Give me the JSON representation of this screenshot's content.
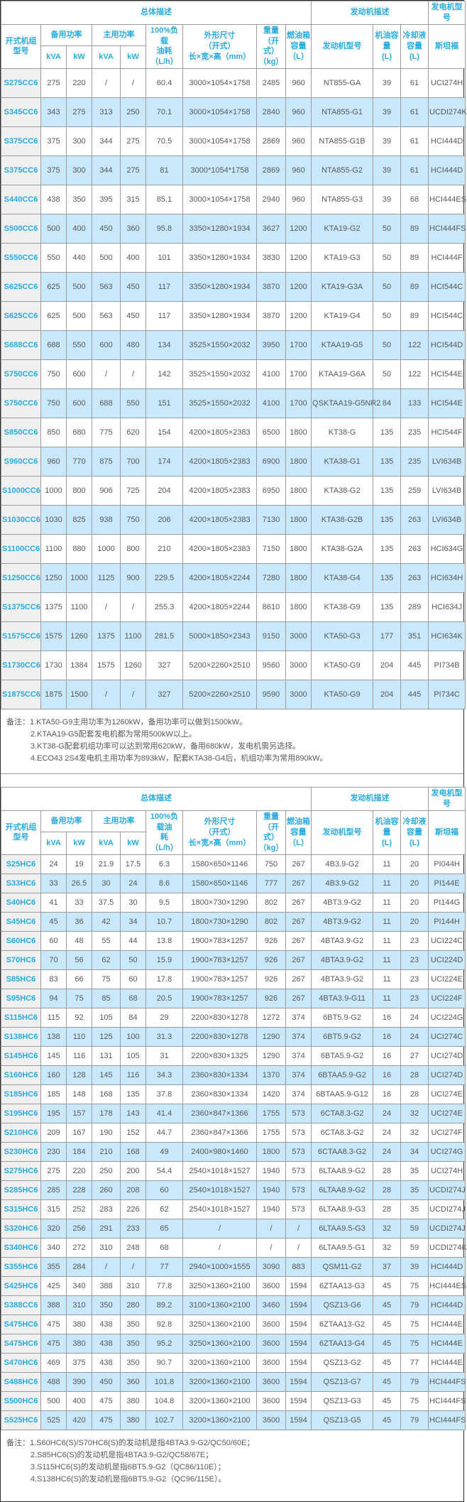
{
  "tables": [
    {
      "group_headers": {
        "overall": "总体描述",
        "engine": "发动机描述",
        "generator": "发电机型号"
      },
      "columns": {
        "model": "开式机组\n型号",
        "standby": "备用功率",
        "prime": "主用功率",
        "kva": "kVA",
        "kw": "kW",
        "fuel": "100%负载\n油耗\n（L/h）",
        "dims": "外形尺寸\n（开式）\n长×宽×高（mm）",
        "weight": "重量\n（开式）\n（kg）",
        "tank": "燃油箱\n容量\n（L）",
        "engine_model": "发动机型号",
        "oil": "机油容量\n(L)",
        "coolant": "冷却液容量\n(L)",
        "stamford": "斯坦福"
      },
      "rows": [
        [
          "S275CC6",
          "275",
          "220",
          "/",
          "/",
          "60.4",
          "3000×1054×1758",
          "2485",
          "960",
          "NT855-GA",
          "39",
          "61",
          "UCI274H"
        ],
        [
          "S345CC6",
          "343",
          "275",
          "313",
          "250",
          "70.1",
          "3000×1054×1758",
          "2840",
          "960",
          "NTA855-G1",
          "39",
          "61",
          "UCDI274K"
        ],
        [
          "S375CC6",
          "375",
          "300",
          "344",
          "275",
          "70.5",
          "3000×1054×1758",
          "2869",
          "960",
          "NTA855-G1B",
          "39",
          "61",
          "HCI444D"
        ],
        [
          "S375CC6",
          "375",
          "300",
          "344",
          "275",
          "81",
          "3000*1054*1758",
          "2869",
          "960",
          "NTA855-G2",
          "39",
          "61",
          "HCI444D"
        ],
        [
          "S440CC6",
          "438",
          "350",
          "395",
          "315",
          "85.1",
          "3000×1054×1758",
          "2940",
          "960",
          "NTA855-G3",
          "39",
          "68",
          "HCI444ES"
        ],
        [
          "S500CC6",
          "500",
          "400",
          "450",
          "360",
          "95.8",
          "3350×1280×1934",
          "3627",
          "1200",
          "KTA19-G2",
          "50",
          "89",
          "HCI444FS"
        ],
        [
          "S550CC6",
          "550",
          "440",
          "500",
          "400",
          "101",
          "3350×1280×1934",
          "3830",
          "1200",
          "KTA19-G3",
          "50",
          "89",
          "HCI444F"
        ],
        [
          "S625CC6",
          "625",
          "500",
          "563",
          "450",
          "117",
          "3350×1280×1934",
          "3870",
          "1200",
          "KTA19-G3A",
          "50",
          "89",
          "HCI544C"
        ],
        [
          "S625CC6",
          "625",
          "500",
          "563",
          "450",
          "117",
          "3350×1280×1934",
          "3870",
          "1200",
          "KTA19-G4",
          "50",
          "89",
          "HCI544C"
        ],
        [
          "S688CC6",
          "688",
          "550",
          "600",
          "480",
          "134",
          "3525×1550×2032",
          "3950",
          "1700",
          "KTAA19-G5",
          "50",
          "122",
          "HCI544D"
        ],
        [
          "S750CC6",
          "750",
          "600",
          "/",
          "/",
          "142",
          "3525×1550×2032",
          "4100",
          "1700",
          "KTAA19-G6A",
          "50",
          "122",
          "HCI544E"
        ],
        [
          "S750CC6",
          "750",
          "600",
          "688",
          "550",
          "151",
          "3525×1550×2032",
          "4100",
          "1700",
          "QSKTAA19-G5NR2",
          "84",
          "133",
          "HCI544E"
        ],
        [
          "S850CC6",
          "850",
          "680",
          "775",
          "620",
          "154",
          "4200×1805×2383",
          "6500",
          "1800",
          "KT38-G",
          "135",
          "235",
          "HCI544F"
        ],
        [
          "S960CC6",
          "960",
          "770",
          "875",
          "700",
          "174",
          "4200×1805×2383",
          "6900",
          "1800",
          "KTA38-G1",
          "135",
          "235",
          "LVI634B"
        ],
        [
          "S1000CC6",
          "1000",
          "800",
          "906",
          "725",
          "204",
          "4200×1805×2383",
          "6950",
          "1800",
          "KTA38-G2",
          "135",
          "259",
          "LVI634B"
        ],
        [
          "S1030CC6",
          "1030",
          "825",
          "938",
          "750",
          "206",
          "4200×1805×2383",
          "7130",
          "1800",
          "KTA38-G2B",
          "135",
          "263",
          "LVI634B"
        ],
        [
          "S1100CC6",
          "1100",
          "880",
          "1000",
          "800",
          "210",
          "4200×1805×2383",
          "7150",
          "1800",
          "KTA38-G2A",
          "135",
          "263",
          "HCI634G"
        ],
        [
          "S1250CC6",
          "1250",
          "1000",
          "1125",
          "900",
          "229.5",
          "4200×1805×2244",
          "7280",
          "1800",
          "KTA38-G4",
          "135",
          "263",
          "HCI634H"
        ],
        [
          "S1375CC6",
          "1375",
          "1100",
          "/",
          "/",
          "255.3",
          "4200×1805×2244",
          "8610",
          "1800",
          "KTA38-G9",
          "135",
          "289",
          "HCI634J"
        ],
        [
          "S1575CC6",
          "1575",
          "1260",
          "1375",
          "1100",
          "281.5",
          "5000×1850×2343",
          "9150",
          "3000",
          "KTA50-G3",
          "177",
          "351",
          "HCI634K"
        ],
        [
          "S1730CC6",
          "1730",
          "1384",
          "1575",
          "1260",
          "327",
          "5200×2260×2510",
          "9560",
          "3000",
          "KTA50-G9",
          "204",
          "445",
          "PI734B"
        ],
        [
          "S1875CC6",
          "1875",
          "1500",
          "/",
          "/",
          "327",
          "5200×2260×2510",
          "9590",
          "3000",
          "KTA50-G9",
          "204",
          "445",
          "PI734C"
        ]
      ],
      "notes": [
        "备注：1.KTA50-G9主用功率为1260kW，备用功率可以做到1500kW。",
        "2.KTAA19-G5配套发电机都为常用500kW以上。",
        "3.KT38-G配套机组功率可以达到常用620kW，备用680kW，发电机需另选择。",
        "4.ECO43 2S4发电机主用功率为893kW，配套KTA38-G4后，机组功率为常用890kW。"
      ]
    },
    {
      "group_headers": {
        "overall": "总体描述",
        "engine": "发动机描述",
        "generator": "发电机型号"
      },
      "columns": {
        "model": "开式机组\n型号",
        "standby": "备用功率",
        "prime": "主用功率",
        "kva": "kVA",
        "kw": "kW",
        "fuel": "100%负载油\n耗\n（L/h）",
        "dims": "外形尺寸\n（开式）\n长×宽×高（mm）",
        "weight": "重量\n（开式）\n（kg）",
        "tank": "燃油箱\n容量\n（L）",
        "engine_model": "发动机型号",
        "oil": "机油容量\n(L)",
        "coolant": "冷却液容量\n(L)",
        "stamford": "斯坦福"
      },
      "rows": [
        [
          "S25HC6",
          "24",
          "19",
          "21.9",
          "17.5",
          "6.3",
          "1580×650×1146",
          "750",
          "267",
          "4B3.9-G2",
          "11",
          "20",
          "PI044H"
        ],
        [
          "S33HC6",
          "33",
          "26.5",
          "30",
          "24",
          "8.6",
          "1580×650×1146",
          "777",
          "267",
          "4B3.9-G2",
          "11",
          "20",
          "PI144E"
        ],
        [
          "S40HC6",
          "41",
          "33",
          "37.5",
          "30",
          "9.5",
          "1800×730×1290",
          "802",
          "267",
          "4BT3.9-G2",
          "11",
          "20",
          "PI144G"
        ],
        [
          "S45HC6",
          "45",
          "36",
          "42",
          "34",
          "10.7",
          "1800×730×1290",
          "802",
          "267",
          "4BT3.9-G2",
          "11",
          "20",
          "PI144H"
        ],
        [
          "S60HC6",
          "60",
          "48",
          "55",
          "44",
          "13.8",
          "1900×783×1257",
          "926",
          "267",
          "4BTA3.9-G2",
          "11",
          "23",
          "UCI224C"
        ],
        [
          "S70HC6",
          "70",
          "56",
          "62",
          "50",
          "15.9",
          "1900×783×1257",
          "926",
          "267",
          "4BTA3.9-G2",
          "11",
          "23",
          "UCI224D"
        ],
        [
          "S85HC6",
          "83",
          "66",
          "75",
          "60",
          "17.8",
          "1900×783×1257",
          "926",
          "267",
          "4BTA3.9-G2",
          "11",
          "23",
          "UCI224E"
        ],
        [
          "S95HC6",
          "94",
          "75",
          "85",
          "68",
          "20.5",
          "1900×783×1257",
          "926",
          "267",
          "4BTA3.9-G11",
          "11",
          "23",
          "UCI224F"
        ],
        [
          "S115HC6",
          "115",
          "92",
          "105",
          "84",
          "29",
          "2200×830×1278",
          "1272",
          "374",
          "6BT5.9-G2",
          "16",
          "24",
          "UCI224G"
        ],
        [
          "S138HC6",
          "138",
          "110",
          "125",
          "100",
          "31.3",
          "2200×830×1278",
          "1290",
          "374",
          "6BT5.9-G2",
          "16",
          "24",
          "UCI274C"
        ],
        [
          "S145HC6",
          "145",
          "116",
          "131",
          "105",
          "31",
          "2200×830×1325",
          "1290",
          "374",
          "6BTA5.9-G2",
          "16",
          "27",
          "UCI274D"
        ],
        [
          "S160HC6",
          "160",
          "128",
          "145",
          "116",
          "34.3",
          "2360×830×1334",
          "1370",
          "374",
          "6BTAA5.9-G2",
          "16",
          "28",
          "UCI274D"
        ],
        [
          "S185HC6",
          "185",
          "148",
          "168",
          "135",
          "37.8",
          "2360×830×1334",
          "1420",
          "374",
          "6BTAA5.9-G12",
          "16",
          "28",
          "UCI274E"
        ],
        [
          "S195HC6",
          "195",
          "157",
          "178",
          "143",
          "41.4",
          "2360×847×1366",
          "1755",
          "573",
          "6CTA8.3-G2",
          "24",
          "32",
          "UCI274E"
        ],
        [
          "S210HC6",
          "209",
          "167",
          "190",
          "152",
          "44.7",
          "2360×847×1366",
          "1755",
          "573",
          "6CTA8.3-G2",
          "24",
          "32",
          "UCI274F"
        ],
        [
          "S230HC6",
          "230",
          "184",
          "210",
          "168",
          "49",
          "2400×980×1460",
          "1800",
          "573",
          "6CTAA8.3-G2",
          "24",
          "34",
          "UCI274G"
        ],
        [
          "S275HC6",
          "275",
          "220",
          "250",
          "200",
          "54.4",
          "2540×1018×1527",
          "1940",
          "573",
          "6LTAA8.9-G2",
          "28",
          "35",
          "UCI274H"
        ],
        [
          "S285HC6",
          "285",
          "228",
          "260",
          "208",
          "60",
          "2540×1018×1527",
          "1940",
          "573",
          "6LTAA8.9-G2",
          "28",
          "35",
          "UCDI274J"
        ],
        [
          "S315HC6",
          "315",
          "252",
          "283",
          "226",
          "62",
          "2540×1018×1527",
          "1940",
          "573",
          "6LTAA8.9-G3",
          "28",
          "35",
          "UCDI274J"
        ],
        [
          "S320HC6",
          "320",
          "256",
          "291",
          "233",
          "65",
          "/",
          "/",
          "/",
          "6LTAA9.5-G3",
          "32",
          "59",
          "UCDI274J"
        ],
        [
          "S340HC6",
          "340",
          "272",
          "310",
          "248",
          "68",
          "/",
          "/",
          "/",
          "6LTAA9.5-G1",
          "32",
          "59",
          "UCDI274K"
        ],
        [
          "S355HC6",
          "355",
          "284",
          "/",
          "/",
          "77",
          "2940×1000×1555",
          "3090",
          "883",
          "QSM11-G2",
          "37",
          "39",
          "HCI444D"
        ],
        [
          "S425HC6",
          "425",
          "340",
          "388",
          "310",
          "77.8",
          "3250×1360×2100",
          "3600",
          "1594",
          "6ZTAA13-G3",
          "45",
          "75",
          "HCI444ES"
        ],
        [
          "S388CC6",
          "388",
          "310",
          "350",
          "280",
          "89.2",
          "3100×1360×2100",
          "3460",
          "1594",
          "QSZ13-G6",
          "45",
          "79",
          "HCI444D"
        ],
        [
          "S475HC6",
          "475",
          "380",
          "438",
          "350",
          "92.8",
          "3250×1360×2100",
          "3600",
          "1594",
          "6ZTAA13-G2",
          "45",
          "75",
          "HCI444E"
        ],
        [
          "S475HC6",
          "475",
          "380",
          "438",
          "350",
          "95.2",
          "3250×1360×2100",
          "3600",
          "1594",
          "6ZTAA13-G4",
          "45",
          "75",
          "HCI444E"
        ],
        [
          "S470HC6",
          "469",
          "375",
          "438",
          "350",
          "90.7",
          "3200×1360×2100",
          "3600",
          "1594",
          "QSZ13-G2",
          "45",
          "77",
          "HCI444E"
        ],
        [
          "S488HC6",
          "488",
          "390",
          "450",
          "360",
          "101.8",
          "3200×1360×2100",
          "3600",
          "1594",
          "QSZ13-G7",
          "45",
          "79",
          "HCI444FS"
        ],
        [
          "S500HC6",
          "500",
          "400",
          "475",
          "380",
          "104.8",
          "3200×1360×2100",
          "3600",
          "1594",
          "QSZ13-G3",
          "45",
          "75",
          "HCI444FS"
        ],
        [
          "S525HC6",
          "525",
          "420",
          "475",
          "380",
          "102.7",
          "3200×1360×2100",
          "3600",
          "1594",
          "QSZ13-G5",
          "45",
          "79",
          "HCI444FS"
        ]
      ],
      "notes": [
        "备注：1.S60HC6(S)/S70HC6(S)的发动机是指4BTA3.9-G2/QC50/60E；",
        "2.S85HC6(S)的发动机是指4BTA3.9-G2/QC58/67E；",
        "3.S115HC6(S)的发动机是指6BT5.9-G2（QC86/110E）；",
        "4.S138HC6(S)的发动机是指6BT5.9-G2（QC96/115E）。"
      ]
    }
  ]
}
